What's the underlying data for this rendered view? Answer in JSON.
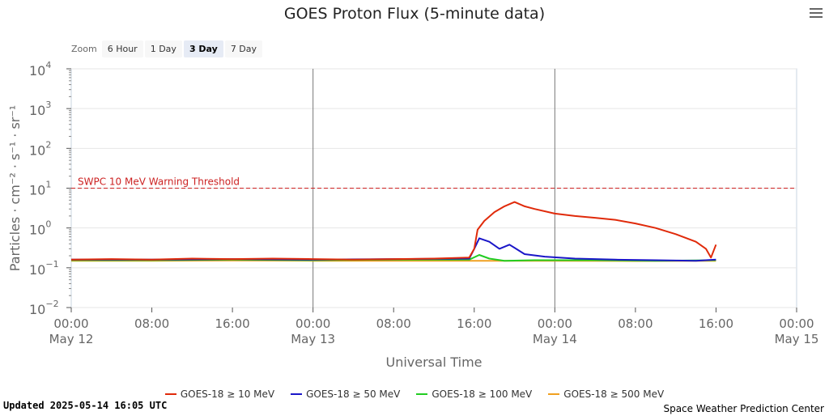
{
  "header": {
    "title": "GOES Proton Flux (5-minute data)"
  },
  "menu": {
    "icon": "hamburger-menu-icon"
  },
  "zoom": {
    "label": "Zoom",
    "buttons": [
      "6 Hour",
      "1 Day",
      "3 Day",
      "7 Day"
    ],
    "active": "3 Day"
  },
  "footer": {
    "updated": "Updated 2025-05-14 16:05 UTC",
    "credit": "Space Weather Prediction Center"
  },
  "chart_data": {
    "type": "line",
    "title": "GOES Proton Flux (5-minute data)",
    "xlabel": "Universal Time",
    "ylabel": "Particles · cm⁻² · s⁻¹ · sr⁻¹",
    "yscale": "log",
    "ylim": [
      0.01,
      10000
    ],
    "xlim": [
      "2025-05-12 00:00",
      "2025-05-15 00:00"
    ],
    "y_ticks": [
      {
        "value": 0.01,
        "base": "10",
        "exp": "−2"
      },
      {
        "value": 0.1,
        "base": "10",
        "exp": "−1"
      },
      {
        "value": 1,
        "base": "10",
        "exp": "0"
      },
      {
        "value": 10,
        "base": "10",
        "exp": "1"
      },
      {
        "value": 100,
        "base": "10",
        "exp": "2"
      },
      {
        "value": 1000,
        "base": "10",
        "exp": "3"
      },
      {
        "value": 10000,
        "base": "10",
        "exp": "4"
      }
    ],
    "x_ticks": [
      {
        "x": "2025-05-12 00:00",
        "label": "00:00",
        "sub": "May 12"
      },
      {
        "x": "2025-05-12 08:00",
        "label": "08:00",
        "sub": ""
      },
      {
        "x": "2025-05-12 16:00",
        "label": "16:00",
        "sub": ""
      },
      {
        "x": "2025-05-13 00:00",
        "label": "00:00",
        "sub": "May 13"
      },
      {
        "x": "2025-05-13 08:00",
        "label": "08:00",
        "sub": ""
      },
      {
        "x": "2025-05-13 16:00",
        "label": "16:00",
        "sub": ""
      },
      {
        "x": "2025-05-14 00:00",
        "label": "00:00",
        "sub": "May 14"
      },
      {
        "x": "2025-05-14 08:00",
        "label": "08:00",
        "sub": ""
      },
      {
        "x": "2025-05-14 16:00",
        "label": "16:00",
        "sub": ""
      },
      {
        "x": "2025-05-15 00:00",
        "label": "00:00",
        "sub": "May 15"
      }
    ],
    "day_lines": [
      "2025-05-13 00:00",
      "2025-05-14 00:00"
    ],
    "threshold": {
      "value": 10,
      "label": "SWPC 10 MeV Warning Threshold",
      "color": "#cc2222"
    },
    "grid": true,
    "legend_position": "bottom",
    "series": [
      {
        "name": "GOES-18 ≥ 10 MeV",
        "color": "#e02a0a",
        "points": [
          [
            "2025-05-12 00:00",
            0.16
          ],
          [
            "2025-05-12 04:00",
            0.165
          ],
          [
            "2025-05-12 08:00",
            0.16
          ],
          [
            "2025-05-12 12:00",
            0.17
          ],
          [
            "2025-05-12 16:00",
            0.165
          ],
          [
            "2025-05-12 20:00",
            0.17
          ],
          [
            "2025-05-13 00:00",
            0.165
          ],
          [
            "2025-05-13 04:00",
            0.16
          ],
          [
            "2025-05-13 08:00",
            0.165
          ],
          [
            "2025-05-13 12:00",
            0.17
          ],
          [
            "2025-05-13 15:30",
            0.18
          ],
          [
            "2025-05-13 16:00",
            0.3
          ],
          [
            "2025-05-13 16:20",
            0.9
          ],
          [
            "2025-05-13 17:00",
            1.5
          ],
          [
            "2025-05-13 18:00",
            2.5
          ],
          [
            "2025-05-13 19:00",
            3.5
          ],
          [
            "2025-05-13 20:00",
            4.5
          ],
          [
            "2025-05-13 21:00",
            3.5
          ],
          [
            "2025-05-13 22:00",
            3.0
          ],
          [
            "2025-05-14 00:00",
            2.3
          ],
          [
            "2025-05-14 02:00",
            2.0
          ],
          [
            "2025-05-14 04:00",
            1.8
          ],
          [
            "2025-05-14 06:00",
            1.6
          ],
          [
            "2025-05-14 08:00",
            1.3
          ],
          [
            "2025-05-14 10:00",
            1.0
          ],
          [
            "2025-05-14 12:00",
            0.7
          ],
          [
            "2025-05-14 14:00",
            0.45
          ],
          [
            "2025-05-14 15:00",
            0.3
          ],
          [
            "2025-05-14 15:30",
            0.18
          ],
          [
            "2025-05-14 16:00",
            0.38
          ]
        ]
      },
      {
        "name": "GOES-18 ≥ 50 MeV",
        "color": "#1a16c8",
        "points": [
          [
            "2025-05-12 00:00",
            0.16
          ],
          [
            "2025-05-12 08:00",
            0.16
          ],
          [
            "2025-05-12 16:00",
            0.165
          ],
          [
            "2025-05-13 00:00",
            0.16
          ],
          [
            "2025-05-13 08:00",
            0.165
          ],
          [
            "2025-05-13 15:30",
            0.17
          ],
          [
            "2025-05-13 16:00",
            0.3
          ],
          [
            "2025-05-13 16:30",
            0.55
          ],
          [
            "2025-05-13 17:30",
            0.45
          ],
          [
            "2025-05-13 18:30",
            0.3
          ],
          [
            "2025-05-13 19:30",
            0.38
          ],
          [
            "2025-05-13 21:00",
            0.22
          ],
          [
            "2025-05-13 23:00",
            0.19
          ],
          [
            "2025-05-14 02:00",
            0.17
          ],
          [
            "2025-05-14 06:00",
            0.16
          ],
          [
            "2025-05-14 10:00",
            0.155
          ],
          [
            "2025-05-14 14:00",
            0.15
          ],
          [
            "2025-05-14 16:00",
            0.16
          ]
        ]
      },
      {
        "name": "GOES-18 ≥ 100 MeV",
        "color": "#22cc22",
        "points": [
          [
            "2025-05-12 00:00",
            0.155
          ],
          [
            "2025-05-12 08:00",
            0.155
          ],
          [
            "2025-05-12 16:00",
            0.16
          ],
          [
            "2025-05-13 00:00",
            0.155
          ],
          [
            "2025-05-13 08:00",
            0.16
          ],
          [
            "2025-05-13 15:30",
            0.16
          ],
          [
            "2025-05-13 16:30",
            0.21
          ],
          [
            "2025-05-13 17:30",
            0.17
          ],
          [
            "2025-05-13 19:00",
            0.15
          ],
          [
            "2025-05-13 22:00",
            0.155
          ],
          [
            "2025-05-14 04:00",
            0.155
          ],
          [
            "2025-05-14 10:00",
            0.15
          ],
          [
            "2025-05-14 16:00",
            0.155
          ]
        ]
      },
      {
        "name": "GOES-18 ≥ 500 MeV",
        "color": "#f0a020",
        "points": [
          [
            "2025-05-12 00:00",
            0.15
          ],
          [
            "2025-05-12 08:00",
            0.15
          ],
          [
            "2025-05-12 16:00",
            0.152
          ],
          [
            "2025-05-13 00:00",
            0.15
          ],
          [
            "2025-05-13 08:00",
            0.15
          ],
          [
            "2025-05-13 16:00",
            0.15
          ],
          [
            "2025-05-14 00:00",
            0.15
          ],
          [
            "2025-05-14 08:00",
            0.148
          ],
          [
            "2025-05-14 16:00",
            0.15
          ]
        ]
      }
    ]
  }
}
